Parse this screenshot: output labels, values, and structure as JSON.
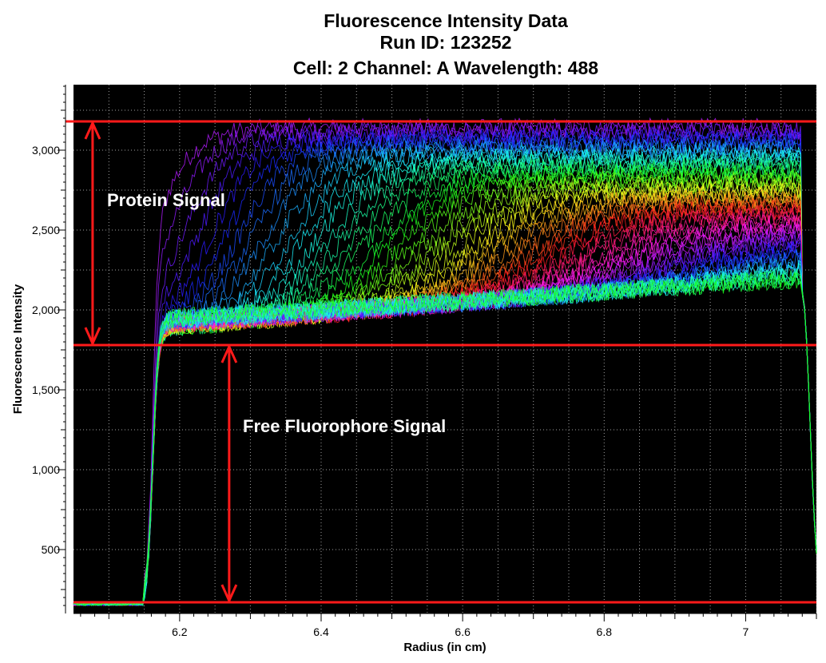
{
  "chart_data": {
    "type": "line",
    "title_lines": [
      "Fluorescence Intensity Data",
      "Run ID: 123252",
      "Cell: 2  Channel: A  Wavelength: 488"
    ],
    "xlabel": "Radius (in cm)",
    "ylabel": "Fluorescence Intensity",
    "xlim": [
      6.05,
      7.1
    ],
    "ylim": [
      100,
      3410
    ],
    "x_ticks": [
      6.2,
      6.4,
      6.6,
      6.8,
      7
    ],
    "x_tick_labels": [
      "6.2",
      "6.4",
      "6.6",
      "6.8",
      "7"
    ],
    "y_ticks": [
      500,
      1000,
      1500,
      2000,
      2500,
      3000
    ],
    "y_tick_labels": [
      "500",
      "1,000",
      "1,500",
      "2,000",
      "2,500",
      "3,000"
    ],
    "background": "#000000",
    "grid": true,
    "scan_count": 60,
    "meniscus_radius": 6.15,
    "cell_bottom_radius": 7.08,
    "baseline_intensity": 160,
    "plateau_start_intensity": 1900,
    "plateau_end_intensity": 2150,
    "max_intensity": 3180,
    "reference_lines": [
      {
        "name": "top",
        "y": 3180
      },
      {
        "name": "middle",
        "y": 1780
      },
      {
        "name": "bottom",
        "y": 170
      }
    ],
    "annotations": [
      {
        "text": "Protein Signal",
        "x_arrow": 6.077,
        "y_from": 1780,
        "y_to": 3180
      },
      {
        "text": "Free Fluorophore Signal",
        "x_arrow": 6.27,
        "y_from": 170,
        "y_to": 1780
      }
    ],
    "colors": {
      "reference_line": "#ff1a1a",
      "annotation_text": "#ffffff",
      "grid": "#c8c8c8"
    }
  }
}
